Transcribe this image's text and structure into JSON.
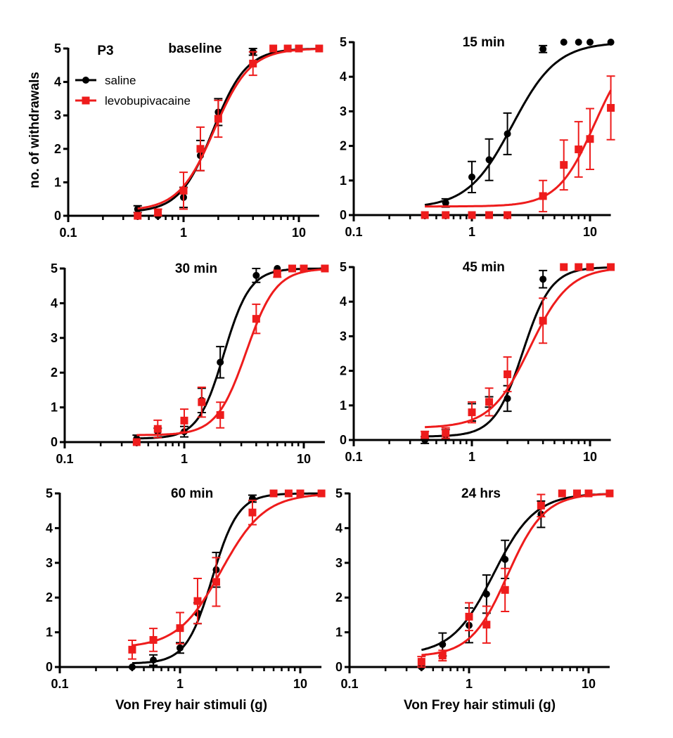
{
  "panel_label": "P3",
  "y_axis_label": "no. of withdrawals",
  "x_axis_label": "Von Frey hair stimuli (g)",
  "legend": [
    {
      "name": "saline",
      "color": "#000000",
      "marker": "circle"
    },
    {
      "name": "levobupivacaine",
      "color": "#ee1c1c",
      "marker": "square"
    }
  ],
  "chart_data": [
    {
      "type": "scatter",
      "title": "baseline",
      "xscale": "log",
      "xlim": [
        0.1,
        15
      ],
      "ylim": [
        0,
        5
      ],
      "xticks": [
        "0.1",
        "1",
        "10"
      ],
      "yticks": [
        "0",
        "1",
        "2",
        "3",
        "4",
        "5"
      ],
      "x": [
        0.4,
        0.6,
        1,
        1.4,
        2,
        4,
        6,
        8,
        10,
        15
      ],
      "series": [
        {
          "name": "saline",
          "values": [
            0.2,
            0,
            0.55,
            1.8,
            3.1,
            4.9,
            5,
            5,
            5,
            5
          ],
          "sem": [
            0.1,
            0,
            0.3,
            0.45,
            0.4,
            0.1,
            0,
            0,
            0,
            0
          ],
          "fit": {
            "bottom": 0.1,
            "top": 5,
            "ec50": 1.8,
            "hill": 3.0
          }
        },
        {
          "name": "levobupivacaine",
          "values": [
            0,
            0.1,
            0.75,
            2.0,
            2.9,
            4.55,
            5,
            5,
            5,
            5
          ],
          "sem": [
            0,
            0.1,
            0.55,
            0.65,
            0.55,
            0.35,
            0,
            0,
            0,
            0
          ],
          "fit": {
            "bottom": 0.15,
            "top": 5,
            "ec50": 1.85,
            "hill": 2.8
          }
        }
      ]
    },
    {
      "type": "scatter",
      "title": "15 min",
      "xscale": "log",
      "xlim": [
        0.1,
        15
      ],
      "ylim": [
        0,
        5
      ],
      "xticks": [
        "0.1",
        "1",
        "10"
      ],
      "yticks": [
        "0",
        "1",
        "2",
        "3",
        "4",
        "5"
      ],
      "x": [
        0.4,
        0.6,
        1,
        1.4,
        2,
        4,
        6,
        8,
        10,
        15
      ],
      "series": [
        {
          "name": "saline",
          "values": [
            0,
            0.35,
            1.1,
            1.6,
            2.35,
            4.8,
            5,
            5,
            5,
            5
          ],
          "sem": [
            0,
            0.12,
            0.45,
            0.6,
            0.6,
            0.1,
            0,
            0,
            0,
            0
          ],
          "fit": {
            "bottom": 0.2,
            "top": 5,
            "ec50": 2.2,
            "hill": 2.3
          }
        },
        {
          "name": "levobupivacaine",
          "values": [
            0,
            0,
            0,
            0,
            0,
            0.55,
            1.45,
            1.9,
            2.2,
            3.1
          ],
          "sem": [
            0,
            0,
            0,
            0,
            0,
            0.45,
            0.72,
            0.8,
            0.88,
            0.92
          ],
          "fit": {
            "bottom": 0.25,
            "top": 5,
            "ec50": 10.9,
            "hill": 2.77
          }
        }
      ]
    },
    {
      "type": "scatter",
      "title": "30 min",
      "xscale": "log",
      "xlim": [
        0.1,
        15
      ],
      "ylim": [
        0,
        5
      ],
      "xticks": [
        "0.1",
        "1",
        "10"
      ],
      "yticks": [
        "0",
        "1",
        "2",
        "3",
        "4",
        "5"
      ],
      "x": [
        0.4,
        0.6,
        1,
        1.4,
        2,
        4,
        6,
        8,
        10,
        15
      ],
      "series": [
        {
          "name": "saline",
          "values": [
            0.1,
            0.3,
            0.3,
            1.2,
            2.3,
            4.8,
            5,
            5,
            5,
            5
          ],
          "sem": [
            0.1,
            0.1,
            0.15,
            0.35,
            0.45,
            0.2,
            0,
            0,
            0,
            0
          ],
          "fit": {
            "bottom": 0.1,
            "top": 5,
            "ec50": 2.15,
            "hill": 4.0
          }
        },
        {
          "name": "levobupivacaine",
          "values": [
            0,
            0.38,
            0.62,
            1.15,
            0.78,
            3.55,
            4.85,
            5,
            5,
            5
          ],
          "sem": [
            0,
            0.25,
            0.33,
            0.43,
            0.37,
            0.42,
            0.1,
            0,
            0,
            0
          ],
          "fit": {
            "bottom": 0.2,
            "top": 5,
            "ec50": 3.3,
            "hill": 3.5
          }
        }
      ]
    },
    {
      "type": "scatter",
      "title": "45 min",
      "xscale": "log",
      "xlim": [
        0.1,
        15
      ],
      "ylim": [
        0,
        5
      ],
      "xticks": [
        "0.1",
        "1",
        "10"
      ],
      "yticks": [
        "0",
        "1",
        "2",
        "3",
        "4",
        "5"
      ],
      "x": [
        0.4,
        0.6,
        1,
        1.4,
        2,
        4,
        6,
        8,
        10,
        15
      ],
      "series": [
        {
          "name": "saline",
          "values": [
            0,
            0.15,
            0.8,
            1.1,
            1.2,
            4.65,
            5,
            5,
            5,
            5
          ],
          "sem": [
            0.1,
            0.15,
            0.25,
            0.15,
            0.37,
            0.25,
            0,
            0,
            0,
            0
          ],
          "fit": {
            "bottom": 0.1,
            "top": 5,
            "ec50": 2.7,
            "hill": 3.6
          }
        },
        {
          "name": "levobupivacaine",
          "values": [
            0.15,
            0.2,
            0.8,
            1.1,
            1.9,
            3.45,
            5,
            5,
            5,
            5
          ],
          "sem": [
            0.1,
            0.15,
            0.3,
            0.4,
            0.5,
            0.65,
            0,
            0,
            0,
            0
          ],
          "fit": {
            "bottom": 0.35,
            "top": 5,
            "ec50": 3.1,
            "hill": 2.6
          }
        }
      ]
    },
    {
      "type": "scatter",
      "title": "60 min",
      "xscale": "log",
      "xlim": [
        0.1,
        15
      ],
      "ylim": [
        0,
        5
      ],
      "xticks": [
        "0.1",
        "1",
        "10"
      ],
      "yticks": [
        "0",
        "1",
        "2",
        "3",
        "4",
        "5"
      ],
      "x": [
        0.4,
        0.6,
        1,
        1.4,
        2,
        4,
        6,
        8,
        10,
        15
      ],
      "series": [
        {
          "name": "saline",
          "values": [
            0,
            0.2,
            0.55,
            1.55,
            2.8,
            4.85,
            5,
            5,
            5,
            5
          ],
          "sem": [
            0,
            0.15,
            0.15,
            0.3,
            0.5,
            0.1,
            0,
            0,
            0,
            0
          ],
          "fit": {
            "bottom": 0.1,
            "top": 5,
            "ec50": 1.85,
            "hill": 4.0
          }
        },
        {
          "name": "levobupivacaine",
          "values": [
            0.5,
            0.78,
            1.12,
            1.9,
            2.45,
            4.45,
            5,
            5,
            5,
            5
          ],
          "sem": [
            0.27,
            0.33,
            0.45,
            0.65,
            0.7,
            0.35,
            0,
            0,
            0,
            0
          ],
          "fit": {
            "bottom": 0.55,
            "top": 5,
            "ec50": 2.2,
            "hill": 2.4
          }
        }
      ]
    },
    {
      "type": "scatter",
      "title": "24 hrs",
      "xscale": "log",
      "xlim": [
        0.1,
        15
      ],
      "ylim": [
        0,
        5
      ],
      "xticks": [
        "0.1",
        "1",
        "10"
      ],
      "yticks": [
        "0",
        "1",
        "2",
        "3",
        "4",
        "5"
      ],
      "x": [
        0.4,
        0.6,
        1,
        1.4,
        2,
        4,
        6,
        8,
        10,
        15
      ],
      "series": [
        {
          "name": "saline",
          "values": [
            0,
            0.65,
            1.2,
            2.1,
            3.1,
            4.4,
            5,
            5,
            5,
            5
          ],
          "sem": [
            0,
            0.33,
            0.5,
            0.55,
            0.55,
            0.38,
            0,
            0,
            0,
            0
          ],
          "fit": {
            "bottom": 0.35,
            "top": 5,
            "ec50": 1.6,
            "hill": 2.5
          }
        },
        {
          "name": "levobupivacaine",
          "values": [
            0.15,
            0.33,
            1.45,
            1.22,
            2.22,
            4.65,
            5,
            5,
            5,
            5
          ],
          "sem": [
            0.15,
            0.15,
            0.4,
            0.53,
            0.62,
            0.32,
            0,
            0,
            0,
            0
          ],
          "fit": {
            "bottom": 0.3,
            "top": 5,
            "ec50": 2.1,
            "hill": 2.8
          }
        }
      ]
    }
  ]
}
